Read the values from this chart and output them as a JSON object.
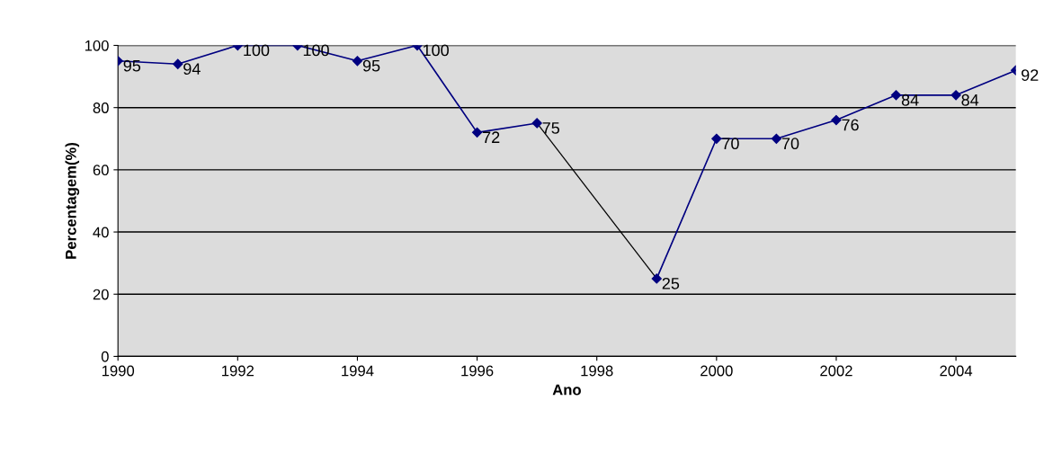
{
  "chart_data": {
    "type": "line",
    "xlabel": "Ano",
    "ylabel": "Percentagem(%)",
    "x": [
      1990,
      1991,
      1992,
      1993,
      1994,
      1995,
      1996,
      1997,
      1998,
      1999,
      2000,
      2001,
      2002,
      2003,
      2004,
      2005
    ],
    "series": [
      {
        "color": "#000080",
        "values": [
          95,
          94,
          100,
          100,
          95,
          100,
          72,
          75,
          null,
          25,
          70,
          70,
          76,
          84,
          84,
          92
        ],
        "marker": "diamond"
      },
      {
        "color": "#000000",
        "x": [
          1997,
          1999
        ],
        "values": [
          75,
          25
        ],
        "marker": "none",
        "value_labels": [
          null,
          null
        ]
      }
    ],
    "data_labels": true,
    "xlim": [
      1990,
      2005
    ],
    "xticks": [
      1990,
      1992,
      1994,
      1996,
      1998,
      2000,
      2002,
      2004
    ],
    "ylim": [
      0,
      100
    ],
    "yticks": [
      0,
      20,
      40,
      60,
      80,
      100
    ],
    "grid": "y",
    "line_style": "solid"
  }
}
